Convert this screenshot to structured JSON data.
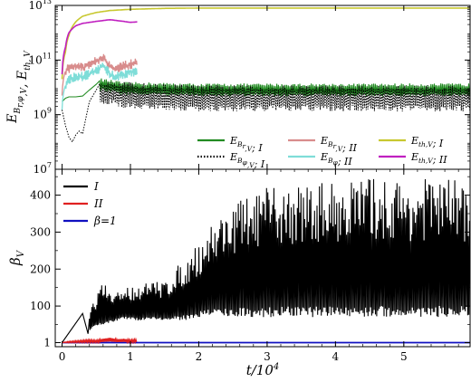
{
  "chart_data": [
    {
      "type": "line",
      "panel": "top",
      "ylabel": "E_{B_{r,φ},V}, E_{th,V}",
      "yscale": "log",
      "ylim": [
        10000000.0,
        10000000000000.0
      ],
      "xlim": [
        -0.1,
        5.97
      ],
      "grid": false,
      "y_ticks": [
        {
          "exp": "7",
          "value": 10000000.0
        },
        {
          "exp": "9",
          "value": 1000000000.0
        },
        {
          "exp": "11",
          "value": 100000000000.0
        },
        {
          "exp": "13",
          "value": 10000000000000.0
        }
      ],
      "legend_position": "lower-right, 3 columns",
      "series": [
        {
          "name": "E_{B_r,V}; I",
          "color": "#228B22",
          "style": "solid",
          "x": [
            0.0,
            0.05,
            0.1,
            0.2,
            0.3,
            0.4,
            0.5,
            0.6,
            0.7,
            0.8,
            0.9,
            1.0,
            1.5,
            2.0,
            3.0,
            4.0,
            5.0,
            5.97
          ],
          "y": [
            3000000000.0,
            4000000000.0,
            4500000000.0,
            4500000000.0,
            4800000000.0,
            8000000000.0,
            13000000000.0,
            12000000000.0,
            11000000000.0,
            10000000000.0,
            9000000000.0,
            9000000000.0,
            8500000000.0,
            8000000000.0,
            8000000000.0,
            8000000000.0,
            8000000000.0,
            8000000000.0
          ],
          "band": [
            4000000000.0,
            16000000000.0
          ]
        },
        {
          "name": "E_{B_φ,V}; I",
          "color": "#000000",
          "style": "dotted",
          "x": [
            0.0,
            0.05,
            0.1,
            0.15,
            0.2,
            0.25,
            0.3,
            0.35,
            0.4,
            0.5,
            0.6,
            0.7,
            0.8,
            1.0,
            1.5,
            2.0,
            3.0,
            4.0,
            5.0,
            5.97
          ],
          "y": [
            1500000000.0,
            400000000.0,
            150000000.0,
            100000000.0,
            180000000.0,
            250000000.0,
            200000000.0,
            800000000.0,
            3000000000.0,
            8000000000.0,
            6000000000.0,
            7000000000.0,
            6000000000.0,
            5000000000.0,
            4500000000.0,
            4000000000.0,
            4000000000.0,
            4000000000.0,
            4000000000.0,
            4000000000.0
          ],
          "band": [
            1500000000.0,
            14000000000.0
          ]
        },
        {
          "name": "E_{B_r,V}; II",
          "color": "#D88C8C",
          "style": "solid",
          "x": [
            0.0,
            0.02,
            0.05,
            0.1,
            0.2,
            0.3,
            0.4,
            0.5,
            0.6,
            0.7,
            0.8,
            0.9,
            1.0,
            1.1
          ],
          "y": [
            5000000000.0,
            20000000000.0,
            40000000000.0,
            50000000000.0,
            60000000000.0,
            50000000000.0,
            70000000000.0,
            100000000000.0,
            120000000000.0,
            60000000000.0,
            50000000000.0,
            60000000000.0,
            70000000000.0,
            80000000000.0
          ]
        },
        {
          "name": "E_{B_φ}; II",
          "color": "#7FDDD8",
          "style": "solid",
          "x": [
            0.0,
            0.02,
            0.05,
            0.1,
            0.2,
            0.3,
            0.4,
            0.5,
            0.6,
            0.7,
            0.8,
            0.9,
            1.0,
            1.1
          ],
          "y": [
            1500000000.0,
            6000000000.0,
            12000000000.0,
            20000000000.0,
            25000000000.0,
            25000000000.0,
            30000000000.0,
            40000000000.0,
            60000000000.0,
            30000000000.0,
            25000000000.0,
            30000000000.0,
            35000000000.0,
            40000000000.0
          ]
        },
        {
          "name": "E_{th,V}; I",
          "color": "#C8C830",
          "style": "solid",
          "x": [
            0.0,
            0.05,
            0.1,
            0.2,
            0.3,
            0.5,
            0.7,
            1.0,
            1.5,
            2.0,
            3.0,
            4.0,
            5.0,
            5.97
          ],
          "y": [
            20000000000.0,
            200000000000.0,
            800000000000.0,
            2500000000000.0,
            4000000000000.0,
            5500000000000.0,
            6500000000000.0,
            7200000000000.0,
            7800000000000.0,
            8000000000000.0,
            8000000000000.0,
            8000000000000.0,
            8000000000000.0,
            8000000000000.0
          ]
        },
        {
          "name": "E_{th,V}; II",
          "color": "#C020C0",
          "style": "solid",
          "x": [
            0.0,
            0.05,
            0.1,
            0.2,
            0.3,
            0.4,
            0.5,
            0.6,
            0.7,
            0.8,
            0.9,
            1.0,
            1.1
          ],
          "y": [
            30000000000.0,
            300000000000.0,
            1000000000000.0,
            1800000000000.0,
            2200000000000.0,
            2400000000000.0,
            2600000000000.0,
            2800000000000.0,
            3000000000000.0,
            2800000000000.0,
            2600000000000.0,
            2400000000000.0,
            2500000000000.0
          ]
        }
      ]
    },
    {
      "type": "line",
      "panel": "bottom",
      "xlabel": "t/10^4",
      "ylabel": "β_V",
      "ylim": [
        -10,
        470
      ],
      "xlim": [
        -0.1,
        5.97
      ],
      "grid": false,
      "x_ticks": [
        0,
        1,
        2,
        3,
        4,
        5
      ],
      "y_ticks": [
        1,
        100,
        200,
        300,
        400
      ],
      "legend_position": "top-left",
      "series": [
        {
          "name": "I",
          "color": "#000000",
          "x": [
            0.0,
            0.2,
            0.3,
            0.35,
            0.45,
            0.6,
            0.7,
            0.9,
            1.1,
            1.3,
            1.5,
            1.8,
            2.0,
            2.2,
            2.5,
            3.0,
            3.5,
            4.0,
            4.5,
            5.0,
            5.5,
            5.97
          ],
          "low": [
            1,
            60,
            80,
            25,
            40,
            50,
            55,
            65,
            60,
            65,
            60,
            62,
            70,
            75,
            70,
            70,
            70,
            70,
            70,
            70,
            70,
            70
          ],
          "high": [
            1,
            60,
            80,
            50,
            110,
            170,
            130,
            150,
            160,
            165,
            170,
            230,
            270,
            330,
            380,
            420,
            430,
            440,
            450,
            440,
            450,
            440
          ]
        },
        {
          "name": "II",
          "color": "#E02020",
          "x": [
            0.0,
            0.1,
            0.2,
            0.3,
            0.4,
            0.5,
            0.6,
            0.7,
            0.8,
            0.9,
            1.0,
            1.1
          ],
          "y": [
            1,
            3,
            4,
            5,
            6,
            5,
            8,
            10,
            7,
            8,
            6,
            7
          ]
        },
        {
          "name": "β=1",
          "color": "#1010C0",
          "x": [
            0.0,
            5.97
          ],
          "y": [
            1,
            1
          ]
        }
      ]
    }
  ]
}
